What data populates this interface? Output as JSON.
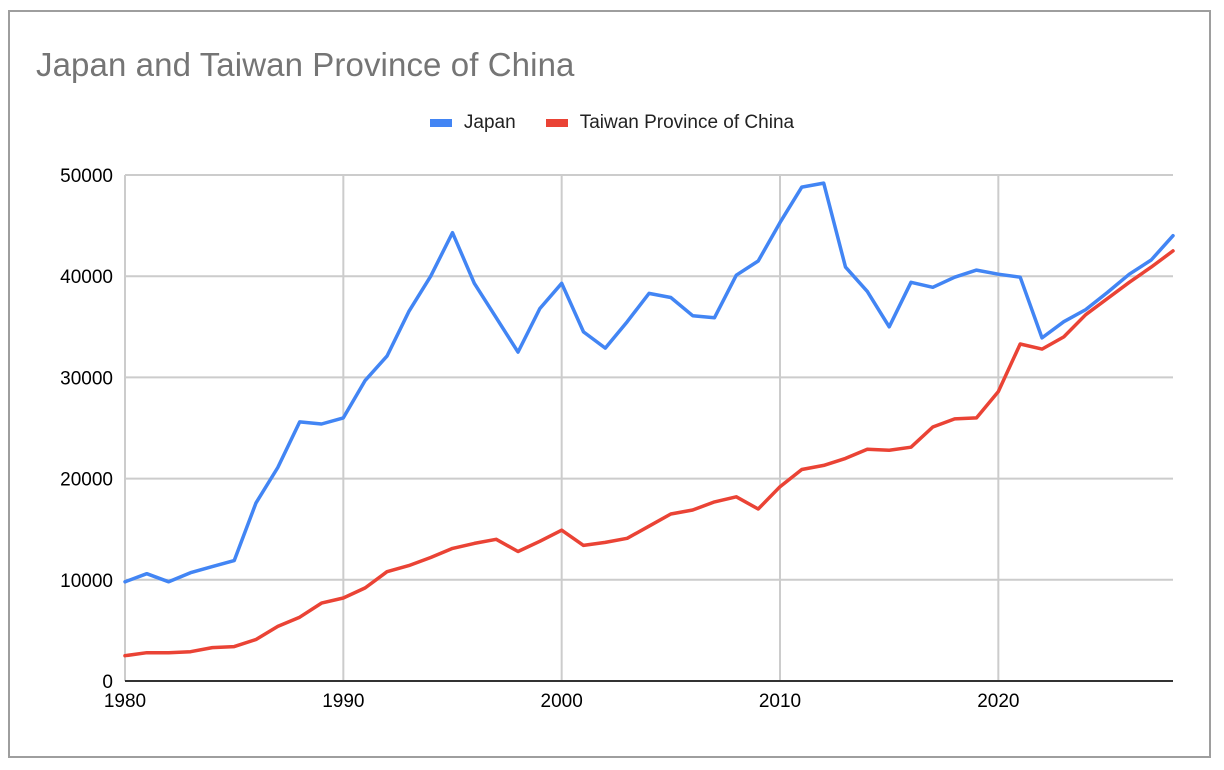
{
  "chart_data": {
    "type": "line",
    "title": "Japan and Taiwan Province of China",
    "xlabel": "",
    "ylabel": "",
    "xlim": [
      1980,
      2028
    ],
    "ylim": [
      0,
      50000
    ],
    "grid": true,
    "legend_position": "top",
    "x_ticks": [
      1980,
      1990,
      2000,
      2010,
      2020
    ],
    "y_ticks": [
      0,
      10000,
      20000,
      30000,
      40000,
      50000
    ],
    "x": [
      1980,
      1981,
      1982,
      1983,
      1984,
      1985,
      1986,
      1987,
      1988,
      1989,
      1990,
      1991,
      1992,
      1993,
      1994,
      1995,
      1996,
      1997,
      1998,
      1999,
      2000,
      2001,
      2002,
      2003,
      2004,
      2005,
      2006,
      2007,
      2008,
      2009,
      2010,
      2011,
      2012,
      2013,
      2014,
      2015,
      2016,
      2017,
      2018,
      2019,
      2020,
      2021,
      2022,
      2023,
      2024,
      2025,
      2026,
      2027,
      2028
    ],
    "series": [
      {
        "name": "Japan",
        "color": "#4285f4",
        "values": [
          9800,
          10600,
          9800,
          10700,
          11300,
          11900,
          17600,
          21100,
          25600,
          25400,
          26000,
          29700,
          32100,
          36500,
          40000,
          44300,
          39300,
          35900,
          32500,
          36800,
          39300,
          34500,
          32900,
          35500,
          38300,
          37900,
          36100,
          35900,
          40100,
          41500,
          45300,
          48800,
          49200,
          40900,
          38500,
          35000,
          39400,
          38900,
          39900,
          40600,
          40200,
          39900,
          33900,
          35500,
          36700,
          38400,
          40200,
          41600,
          44000
        ]
      },
      {
        "name": "Taiwan Province of China",
        "color": "#ea4335",
        "values": [
          2500,
          2800,
          2800,
          2900,
          3300,
          3400,
          4100,
          5400,
          6300,
          7700,
          8200,
          9200,
          10800,
          11400,
          12200,
          13100,
          13600,
          14000,
          12800,
          13800,
          14900,
          13400,
          13700,
          14100,
          15300,
          16500,
          16900,
          17700,
          18200,
          17000,
          19200,
          20900,
          21300,
          22000,
          22900,
          22800,
          23100,
          25100,
          25900,
          26000,
          28600,
          33300,
          32800,
          34000,
          36200,
          37800,
          39400,
          40900,
          42500
        ]
      }
    ]
  },
  "title": "Japan and Taiwan Province of China",
  "legend": [
    {
      "label": "Japan",
      "color": "#4285f4"
    },
    {
      "label": "Taiwan Province of China",
      "color": "#ea4335"
    }
  ],
  "axis": {
    "y_labels": [
      "0",
      "10000",
      "20000",
      "30000",
      "40000",
      "50000"
    ],
    "x_labels": [
      "1980",
      "1990",
      "2000",
      "2010",
      "2020"
    ]
  }
}
